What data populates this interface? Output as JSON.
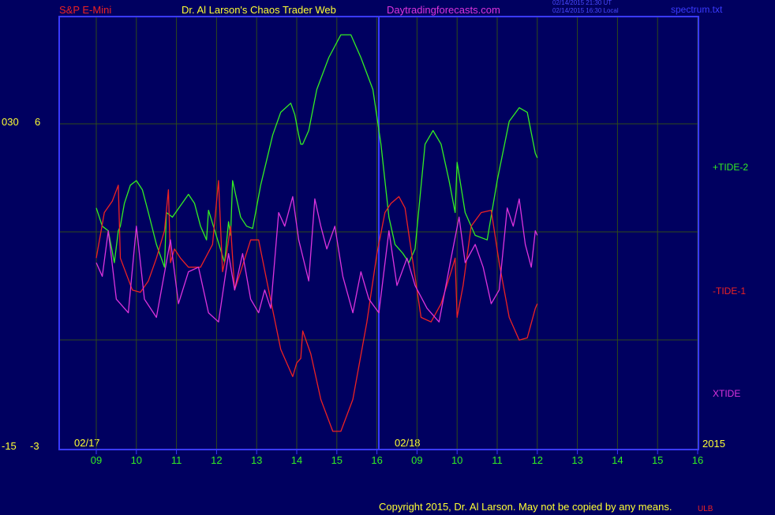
{
  "header": {
    "symbol": "S&P E-Mini",
    "title": "Dr. Al Larson's Chaos Trader Web",
    "site": "Daytradingforecasts.com",
    "stamp_line1": "02/14/2015 21:30 UT",
    "stamp_line2": "02/14/2015 16:30 Local",
    "file": "spectrum.txt"
  },
  "left_axis": {
    "top_outer": "030",
    "top_inner": "6",
    "bottom_outer": "-15",
    "bottom_inner": "-3"
  },
  "footer": {
    "copyright": "Copyright 2015, Dr. Al Larson. May not be copied by any means.",
    "corner": "ULB",
    "year": "2015"
  },
  "colors": {
    "background": "#000060",
    "frame": "#3a3aff",
    "grid": "#2f4a1a",
    "tide2": "#33ee22",
    "tide1": "#ee2222",
    "xtide": "#dd33dd",
    "hour_labels": "#33ee22",
    "text": "#ffff33"
  },
  "chart_data": {
    "type": "line",
    "title": "",
    "date_labels": [
      "02/17",
      "02/18"
    ],
    "x_ticks": [
      "09",
      "10",
      "11",
      "12",
      "13",
      "14",
      "15",
      "16",
      "09",
      "10",
      "11",
      "12",
      "13",
      "14",
      "15",
      "16"
    ],
    "grid": true,
    "series": [
      {
        "name": "+TIDE-2",
        "color": "#33ee22",
        "points": [
          [
            0,
            -0.2
          ],
          [
            0.15,
            -0.6
          ],
          [
            0.3,
            -0.7
          ],
          [
            0.45,
            -1.4
          ],
          [
            0.55,
            -0.7
          ],
          [
            0.6,
            -0.6
          ],
          [
            0.7,
            -0.1
          ],
          [
            0.85,
            0.3
          ],
          [
            1.0,
            0.4
          ],
          [
            1.15,
            0.2
          ],
          [
            1.3,
            -0.3
          ],
          [
            1.5,
            -1
          ],
          [
            1.7,
            -1.5
          ],
          [
            1.75,
            -0.3
          ],
          [
            1.9,
            -0.4
          ],
          [
            2.1,
            -0.15
          ],
          [
            2.3,
            0.1
          ],
          [
            2.45,
            -0.1
          ],
          [
            2.6,
            -0.6
          ],
          [
            2.75,
            -0.9
          ],
          [
            2.8,
            -0.25
          ],
          [
            3.2,
            -1.4
          ],
          [
            3.3,
            -0.5
          ],
          [
            3.35,
            -0.8
          ],
          [
            3.4,
            0.4
          ],
          [
            3.6,
            -0.4
          ],
          [
            3.75,
            -0.6
          ],
          [
            3.9,
            -0.65
          ],
          [
            4.1,
            0.3
          ],
          [
            4.4,
            1.4
          ],
          [
            4.6,
            1.9
          ],
          [
            4.85,
            2.1
          ],
          [
            4.95,
            1.85
          ],
          [
            5.05,
            1.4
          ],
          [
            5.1,
            1.2
          ],
          [
            5.15,
            1.2
          ],
          [
            5.3,
            1.5
          ],
          [
            5.5,
            2.4
          ],
          [
            5.8,
            3.1
          ],
          [
            6.1,
            3.6
          ],
          [
            6.35,
            3.6
          ],
          [
            6.6,
            3.1
          ],
          [
            6.9,
            2.4
          ],
          [
            7.1,
            1.2
          ],
          [
            7.3,
            -0.4
          ],
          [
            7.45,
            -1.0
          ],
          [
            7.65,
            -1.2
          ],
          [
            7.8,
            -1.4
          ],
          [
            7.95,
            -1.1
          ],
          [
            8.2,
            1.2
          ],
          [
            8.4,
            1.5
          ],
          [
            8.6,
            1.2
          ],
          [
            8.8,
            0.4
          ],
          [
            8.95,
            -0.3
          ],
          [
            9.0,
            0.8
          ],
          [
            9.2,
            -0.3
          ],
          [
            9.45,
            -0.8
          ],
          [
            9.75,
            -0.9
          ],
          [
            10.0,
            0.4
          ],
          [
            10.3,
            1.7
          ],
          [
            10.55,
            2.0
          ],
          [
            10.75,
            1.9
          ],
          [
            10.95,
            1.0
          ],
          [
            11.0,
            0.9
          ]
        ]
      },
      {
        "name": "-TIDE-1",
        "color": "#ee2222",
        "points": [
          [
            0,
            -1.3
          ],
          [
            0.2,
            -0.3
          ],
          [
            0.4,
            -0.05
          ],
          [
            0.55,
            0.3
          ],
          [
            0.6,
            -1.3
          ],
          [
            0.9,
            -2.0
          ],
          [
            1.1,
            -2.05
          ],
          [
            1.3,
            -1.8
          ],
          [
            1.5,
            -1.3
          ],
          [
            1.7,
            -0.7
          ],
          [
            1.8,
            0.2
          ],
          [
            1.85,
            -1.4
          ],
          [
            1.95,
            -1.1
          ],
          [
            2.1,
            -1.3
          ],
          [
            2.3,
            -1.5
          ],
          [
            2.6,
            -1.5
          ],
          [
            2.9,
            -1.0
          ],
          [
            3.05,
            0.4
          ],
          [
            3.15,
            -1.6
          ],
          [
            3.25,
            -1.2
          ],
          [
            3.35,
            -0.6
          ],
          [
            3.45,
            -2.0
          ],
          [
            3.6,
            -1.6
          ],
          [
            3.85,
            -0.9
          ],
          [
            4.05,
            -0.9
          ],
          [
            4.3,
            -2.0
          ],
          [
            4.6,
            -3.3
          ],
          [
            4.9,
            -3.9
          ],
          [
            5.0,
            -3.6
          ],
          [
            5.1,
            -3.5
          ],
          [
            5.15,
            -2.9
          ],
          [
            5.35,
            -3.4
          ],
          [
            5.6,
            -4.4
          ],
          [
            5.9,
            -5.1
          ],
          [
            6.1,
            -5.1
          ],
          [
            6.4,
            -4.4
          ],
          [
            6.75,
            -2.7
          ],
          [
            7.0,
            -1.2
          ],
          [
            7.2,
            -0.3
          ],
          [
            7.35,
            -0.1
          ],
          [
            7.55,
            0.05
          ],
          [
            7.7,
            -0.2
          ],
          [
            7.9,
            -1.4
          ],
          [
            8.1,
            -2.6
          ],
          [
            8.35,
            -2.7
          ],
          [
            8.6,
            -2.3
          ],
          [
            8.85,
            -1.6
          ],
          [
            8.95,
            -1.3
          ],
          [
            9.0,
            -2.6
          ],
          [
            9.15,
            -1.9
          ],
          [
            9.35,
            -0.6
          ],
          [
            9.6,
            -0.3
          ],
          [
            9.85,
            -0.25
          ],
          [
            10.05,
            -1.4
          ],
          [
            10.3,
            -2.6
          ],
          [
            10.55,
            -3.1
          ],
          [
            10.75,
            -3.05
          ],
          [
            10.95,
            -2.4
          ],
          [
            11.0,
            -2.3
          ]
        ]
      },
      {
        "name": "XTIDE",
        "color": "#dd33dd",
        "points": [
          [
            0,
            -1.4
          ],
          [
            0.15,
            -1.7
          ],
          [
            0.3,
            -0.7
          ],
          [
            0.5,
            -2.2
          ],
          [
            0.8,
            -2.5
          ],
          [
            1.0,
            -0.6
          ],
          [
            1.2,
            -2.2
          ],
          [
            1.5,
            -2.6
          ],
          [
            1.85,
            -0.9
          ],
          [
            2.05,
            -2.3
          ],
          [
            2.3,
            -1.6
          ],
          [
            2.55,
            -1.5
          ],
          [
            2.8,
            -2.5
          ],
          [
            3.05,
            -2.7
          ],
          [
            3.3,
            -1.2
          ],
          [
            3.45,
            -2.0
          ],
          [
            3.65,
            -1.2
          ],
          [
            3.85,
            -2.2
          ],
          [
            4.05,
            -2.5
          ],
          [
            4.2,
            -2.0
          ],
          [
            4.35,
            -2.4
          ],
          [
            4.55,
            -0.3
          ],
          [
            4.7,
            -0.6
          ],
          [
            4.9,
            0.05
          ],
          [
            5.05,
            -0.9
          ],
          [
            5.3,
            -1.8
          ],
          [
            5.45,
            0.0
          ],
          [
            5.6,
            -0.6
          ],
          [
            5.75,
            -1.1
          ],
          [
            5.95,
            -0.6
          ],
          [
            6.15,
            -1.7
          ],
          [
            6.4,
            -2.5
          ],
          [
            6.6,
            -1.6
          ],
          [
            6.8,
            -2.2
          ],
          [
            7.05,
            -2.5
          ],
          [
            7.3,
            -0.7
          ],
          [
            7.5,
            -1.9
          ],
          [
            7.75,
            -1.3
          ],
          [
            7.95,
            -1.9
          ],
          [
            8.25,
            -2.4
          ],
          [
            8.55,
            -2.7
          ],
          [
            8.85,
            -1.3
          ],
          [
            9.05,
            -0.4
          ],
          [
            9.2,
            -1.4
          ],
          [
            9.45,
            -1.0
          ],
          [
            9.65,
            -1.5
          ],
          [
            9.85,
            -2.3
          ],
          [
            10.05,
            -2.0
          ],
          [
            10.25,
            -0.2
          ],
          [
            10.4,
            -0.6
          ],
          [
            10.55,
            0.0
          ],
          [
            10.7,
            -1.0
          ],
          [
            10.85,
            -1.5
          ],
          [
            10.95,
            -0.7
          ],
          [
            11.0,
            -0.8
          ]
        ]
      }
    ]
  }
}
